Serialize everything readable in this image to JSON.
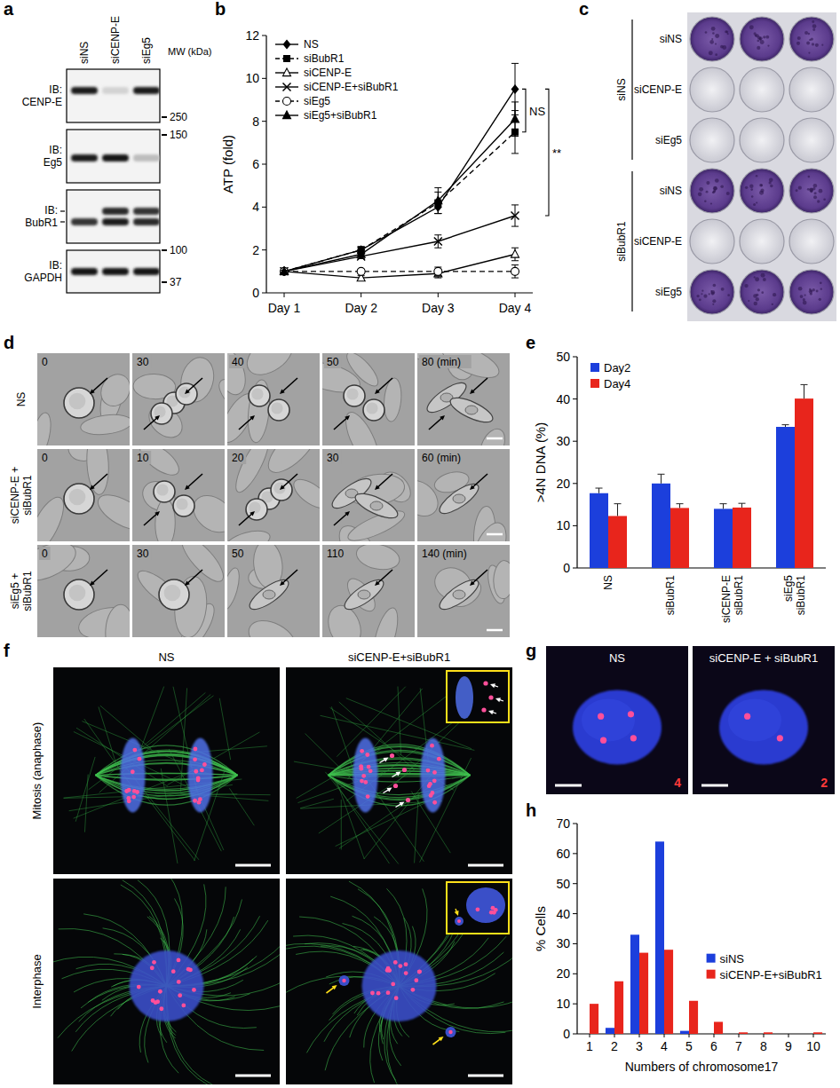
{
  "panel_letters": [
    "a",
    "b",
    "c",
    "d",
    "e",
    "f",
    "g",
    "h"
  ],
  "blot": {
    "lanes": [
      "siNS",
      "siCENP-E",
      "siEg5"
    ],
    "mw_title": "MW (kDa)",
    "rows": [
      {
        "label": "IB: CENP-E"
      },
      {
        "label": "IB: Eg5"
      },
      {
        "label": "IB: BubR1"
      },
      {
        "label": "IB: GAPDH"
      }
    ],
    "mw_markers": [
      250,
      150,
      100,
      37
    ]
  },
  "chart_data": [
    {
      "type": "line",
      "ylabel": "ATP (fold)",
      "categories": [
        "Day 1",
        "Day 2",
        "Day 3",
        "Day 4"
      ],
      "ylim": [
        0,
        12
      ],
      "yticks": [
        0,
        2,
        4,
        6,
        8,
        10,
        12
      ],
      "legend": "top-left",
      "series": [
        {
          "name": "NS",
          "color": "#000000",
          "marker": "diamond",
          "line_style": "solid",
          "values": [
            1,
            2.0,
            4.0,
            9.5
          ],
          "errors": [
            0.05,
            0.15,
            0.3,
            1.2
          ]
        },
        {
          "name": "siBubR1",
          "color": "#000000",
          "marker": "square",
          "line_style": "dashed",
          "values": [
            1,
            2.0,
            4.2,
            7.5
          ],
          "errors": [
            0.05,
            0.15,
            0.5,
            1.0
          ]
        },
        {
          "name": "siCENP-E",
          "color": "#000000",
          "marker": "triangle-open",
          "line_style": "solid",
          "values": [
            1,
            0.7,
            0.9,
            1.8
          ],
          "errors": [
            0.05,
            0.1,
            0.2,
            0.3
          ]
        },
        {
          "name": "siCENP-E+siBubR1",
          "color": "#000000",
          "marker": "x",
          "line_style": "solid",
          "values": [
            1,
            1.7,
            2.4,
            3.6
          ],
          "errors": [
            0.05,
            0.1,
            0.3,
            0.5
          ]
        },
        {
          "name": "siEg5",
          "color": "#000000",
          "marker": "circle-open",
          "line_style": "dashed",
          "values": [
            1,
            1.0,
            1.0,
            1.0
          ],
          "errors": [
            0.05,
            0.1,
            0.2,
            0.3
          ]
        },
        {
          "name": "siEg5+siBubR1",
          "color": "#000000",
          "marker": "triangle",
          "line_style": "solid",
          "values": [
            1,
            1.8,
            4.3,
            8.1
          ],
          "errors": [
            0.05,
            0.2,
            0.6,
            0.8
          ]
        }
      ],
      "annotations": [
        {
          "text": "NS",
          "series": [
            "NS",
            "siBubR1"
          ]
        },
        {
          "text": "**",
          "series": [
            "NS",
            "siCENP-E+siBubR1"
          ]
        }
      ]
    },
    {
      "type": "bar",
      "ylabel": ">4N DNA (%)",
      "categories": [
        "NS",
        "siBubR1",
        "siCENP-E siBubR1",
        "siEg5 siBubR1"
      ],
      "ylim": [
        0,
        50
      ],
      "yticks": [
        0,
        10,
        20,
        30,
        40,
        50
      ],
      "legend": "top-left",
      "series": [
        {
          "name": "Day2",
          "color": "#1c3fdc",
          "values": [
            17.7,
            20.0,
            14.0,
            33.4
          ],
          "errors": [
            1.2,
            2.2,
            1.2,
            0.5
          ]
        },
        {
          "name": "Day4",
          "color": "#e8251c",
          "values": [
            12.3,
            14.2,
            14.3,
            40.1
          ],
          "errors": [
            2.9,
            1.0,
            1.0,
            3.3
          ]
        }
      ]
    },
    {
      "type": "bar",
      "xlabel": "Numbers of chromosome17",
      "ylabel": "% Cells",
      "categories": [
        1,
        2,
        3,
        4,
        5,
        6,
        7,
        8,
        9,
        10
      ],
      "ylim": [
        0,
        70
      ],
      "yticks": [
        0,
        10,
        20,
        30,
        40,
        50,
        60,
        70
      ],
      "legend": "right",
      "series": [
        {
          "name": "siNS",
          "color": "#1c3fdc",
          "values": [
            0,
            2,
            33,
            64,
            1,
            0,
            0,
            0,
            0,
            0
          ]
        },
        {
          "name": "siCENP-E+siBubR1",
          "color": "#e8251c",
          "values": [
            10,
            17.5,
            27,
            28,
            11,
            4,
            0.5,
            0.5,
            0,
            0.5
          ]
        }
      ]
    }
  ],
  "plate": {
    "groups": [
      {
        "label": "siNS",
        "rows": [
          "siNS",
          "siCENP-E",
          "siEg5"
        ]
      },
      {
        "label": "siBubR1",
        "rows": [
          "siNS",
          "siCENP-E",
          "siEg5"
        ]
      }
    ]
  },
  "timelapse": {
    "rows": [
      {
        "label": "NS",
        "times": [
          "0",
          "30",
          "40",
          "50",
          "80 (min)"
        ]
      },
      {
        "label": "siCENP-E + siBubR1",
        "times": [
          "0",
          "10",
          "20",
          "30",
          "60 (min)"
        ]
      },
      {
        "label": "siEg5 + siBubR1",
        "times": [
          "0",
          "30",
          "50",
          "110",
          "140 (min)"
        ]
      }
    ]
  },
  "fish_mitosis": {
    "columns": [
      "NS",
      "siCENP-E+siBubR1"
    ],
    "rows": [
      "Mitosis (anaphase)",
      "Interphase"
    ]
  },
  "fish_counts": {
    "images": [
      {
        "label": "NS",
        "count": 4
      },
      {
        "label": "siCENP-E + siBubR1",
        "count": 2
      }
    ]
  }
}
